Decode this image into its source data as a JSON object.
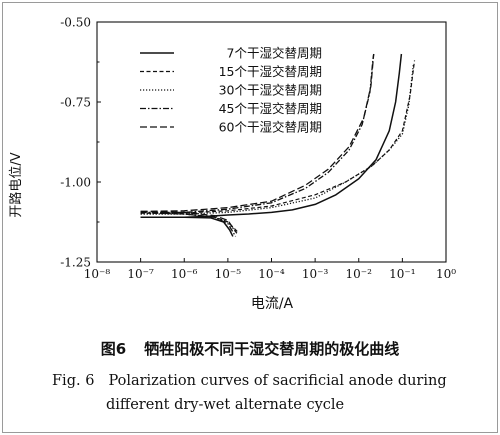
{
  "chart_data": {
    "type": "line",
    "xlabel": "电流/A",
    "ylabel": "开路电位/V",
    "x_scale": "log",
    "xlim": [
      1e-08,
      1
    ],
    "ylim": [
      -1.25,
      -0.5
    ],
    "x_ticks": [
      "10⁻⁸",
      "10⁻⁷",
      "10⁻⁶",
      "10⁻⁵",
      "10⁻⁴",
      "10⁻³",
      "10⁻²",
      "10⁻¹",
      "10⁰"
    ],
    "y_ticks": [
      "-0.50",
      "-0.75",
      "-1.00",
      "-1.25"
    ],
    "grid": false,
    "legend_position": "top-center",
    "series": [
      {
        "name": "7个干湿交替周期",
        "dash": "solid",
        "anodic": [
          [
            1e-07,
            -1.11
          ],
          [
            1e-06,
            -1.11
          ],
          [
            3e-06,
            -1.108
          ],
          [
            1e-05,
            -1.103
          ],
          [
            3e-05,
            -1.1
          ],
          [
            0.0001,
            -1.095
          ],
          [
            0.0003,
            -1.087
          ],
          [
            0.001,
            -1.07
          ],
          [
            0.003,
            -1.04
          ],
          [
            0.01,
            -0.99
          ],
          [
            0.025,
            -0.93
          ],
          [
            0.05,
            -0.84
          ],
          [
            0.07,
            -0.75
          ],
          [
            0.085,
            -0.66
          ],
          [
            0.095,
            -0.6
          ]
        ],
        "cathodic": [
          [
            1e-07,
            -1.11
          ],
          [
            1e-06,
            -1.11
          ],
          [
            4e-06,
            -1.112
          ],
          [
            8e-06,
            -1.125
          ],
          [
            1.1e-05,
            -1.15
          ],
          [
            1.3e-05,
            -1.17
          ]
        ]
      },
      {
        "name": "15个干湿交替周期",
        "dash": "short-dash",
        "anodic": [
          [
            1e-07,
            -1.097
          ],
          [
            1e-06,
            -1.097
          ],
          [
            1e-05,
            -1.09
          ],
          [
            0.0001,
            -1.075
          ],
          [
            0.001,
            -1.04
          ],
          [
            0.005,
            -1.0
          ],
          [
            0.02,
            -0.95
          ],
          [
            0.05,
            -0.9
          ],
          [
            0.1,
            -0.84
          ],
          [
            0.15,
            -0.73
          ],
          [
            0.19,
            -0.62
          ]
        ],
        "cathodic": [
          [
            1e-07,
            -1.097
          ],
          [
            1e-06,
            -1.1
          ],
          [
            5e-06,
            -1.11
          ],
          [
            1e-05,
            -1.125
          ],
          [
            1.8e-05,
            -1.16
          ]
        ]
      },
      {
        "name": "30个干湿交替周期",
        "dash": "dotted",
        "anodic": [
          [
            1e-07,
            -1.1
          ],
          [
            1e-06,
            -1.1
          ],
          [
            1e-05,
            -1.095
          ],
          [
            0.0001,
            -1.08
          ],
          [
            0.001,
            -1.05
          ],
          [
            0.005,
            -1.0
          ],
          [
            0.02,
            -0.95
          ],
          [
            0.05,
            -0.9
          ],
          [
            0.1,
            -0.85
          ],
          [
            0.14,
            -0.76
          ],
          [
            0.18,
            -0.63
          ]
        ],
        "cathodic": [
          [
            1e-07,
            -1.1
          ],
          [
            1e-06,
            -1.1
          ],
          [
            5e-06,
            -1.11
          ],
          [
            1e-05,
            -1.125
          ],
          [
            1.6e-05,
            -1.16
          ]
        ]
      },
      {
        "name": "45个干湿交替周期",
        "dash": "dash-dot",
        "anodic": [
          [
            1e-07,
            -1.095
          ],
          [
            1e-06,
            -1.095
          ],
          [
            1e-05,
            -1.085
          ],
          [
            0.0001,
            -1.065
          ],
          [
            0.0006,
            -1.02
          ],
          [
            0.002,
            -0.97
          ],
          [
            0.006,
            -0.9
          ],
          [
            0.012,
            -0.82
          ],
          [
            0.018,
            -0.72
          ],
          [
            0.021,
            -0.62
          ],
          [
            0.022,
            -0.6
          ]
        ],
        "cathodic": [
          [
            1e-07,
            -1.095
          ],
          [
            1e-06,
            -1.1
          ],
          [
            5e-06,
            -1.11
          ],
          [
            1e-05,
            -1.13
          ],
          [
            1.5e-05,
            -1.17
          ]
        ]
      },
      {
        "name": "60个干湿交替周期",
        "dash": "long-dash",
        "anodic": [
          [
            1e-07,
            -1.092
          ],
          [
            1e-06,
            -1.09
          ],
          [
            1e-05,
            -1.08
          ],
          [
            0.0001,
            -1.06
          ],
          [
            0.0006,
            -1.01
          ],
          [
            0.002,
            -0.96
          ],
          [
            0.006,
            -0.89
          ],
          [
            0.013,
            -0.8
          ],
          [
            0.019,
            -0.7
          ],
          [
            0.022,
            -0.6
          ]
        ],
        "cathodic": [
          [
            1e-07,
            -1.092
          ],
          [
            1e-06,
            -1.095
          ],
          [
            5e-06,
            -1.105
          ],
          [
            1e-05,
            -1.12
          ],
          [
            1.6e-05,
            -1.16
          ]
        ]
      }
    ]
  },
  "caption": {
    "cn_number": "图6",
    "cn_text": "牺牲阳极不同干湿交替周期的极化曲线",
    "en_number": "Fig. 6",
    "en_line1": "Polarization curves of sacrificial anode during",
    "en_line2": "different dry-wet alternate cycle"
  }
}
